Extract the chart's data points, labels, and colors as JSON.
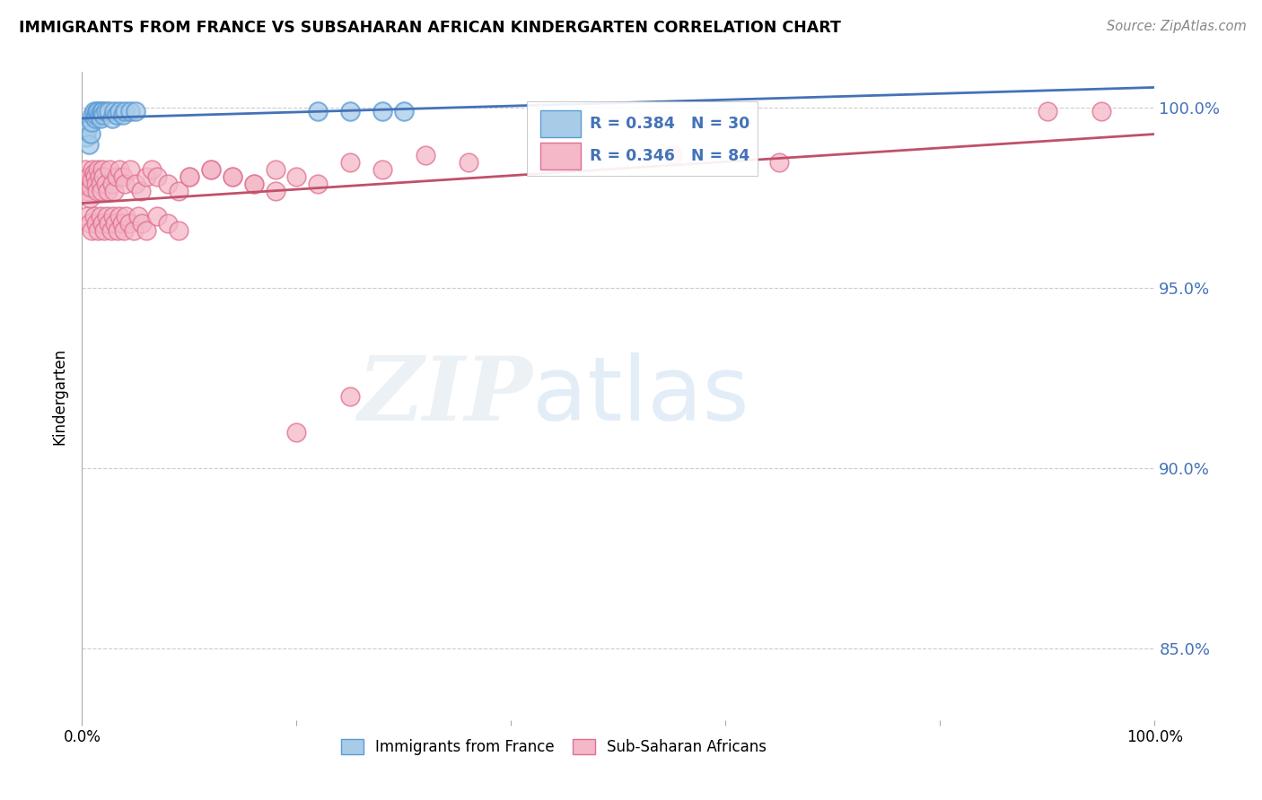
{
  "title": "IMMIGRANTS FROM FRANCE VS SUBSAHARAN AFRICAN KINDERGARTEN CORRELATION CHART",
  "source": "Source: ZipAtlas.com",
  "ylabel": "Kindergarten",
  "xlim": [
    0.0,
    1.0
  ],
  "ylim": [
    0.83,
    1.01
  ],
  "yticks": [
    0.85,
    0.9,
    0.95,
    1.0
  ],
  "ytick_labels": [
    "85.0%",
    "90.0%",
    "95.0%",
    "100.0%"
  ],
  "legend_label1": "Immigrants from France",
  "legend_label2": "Sub-Saharan Africans",
  "legend_R1": "R = 0.384",
  "legend_N1": "N = 30",
  "legend_R2": "R = 0.346",
  "legend_N2": "N = 84",
  "color_blue": "#a8cce8",
  "color_pink": "#f4b8c8",
  "color_blue_edge": "#5b9bd5",
  "color_pink_edge": "#e07090",
  "color_blue_line": "#4472b8",
  "color_pink_line": "#c0506a",
  "color_blue_text": "#4472b8",
  "watermark_zip": "ZIP",
  "watermark_atlas": "atlas",
  "france_x": [
    0.004,
    0.005,
    0.006,
    0.008,
    0.009,
    0.01,
    0.011,
    0.012,
    0.013,
    0.014,
    0.015,
    0.016,
    0.017,
    0.018,
    0.019,
    0.02,
    0.022,
    0.025,
    0.028,
    0.03,
    0.032,
    0.035,
    0.038,
    0.04,
    0.045,
    0.05,
    0.22,
    0.25,
    0.28,
    0.3
  ],
  "france_y": [
    0.992,
    0.994,
    0.99,
    0.993,
    0.996,
    0.998,
    0.999,
    0.997,
    0.998,
    0.999,
    0.999,
    0.998,
    0.997,
    0.999,
    0.999,
    0.998,
    0.999,
    0.999,
    0.997,
    0.999,
    0.998,
    0.999,
    0.998,
    0.999,
    0.999,
    0.999,
    0.999,
    0.999,
    0.999,
    0.999
  ],
  "africa_x": [
    0.003,
    0.004,
    0.005,
    0.006,
    0.007,
    0.008,
    0.009,
    0.01,
    0.011,
    0.012,
    0.013,
    0.014,
    0.015,
    0.016,
    0.017,
    0.018,
    0.019,
    0.02,
    0.022,
    0.024,
    0.026,
    0.028,
    0.03,
    0.032,
    0.035,
    0.038,
    0.04,
    0.045,
    0.05,
    0.055,
    0.06,
    0.065,
    0.07,
    0.08,
    0.09,
    0.1,
    0.12,
    0.14,
    0.16,
    0.18,
    0.005,
    0.007,
    0.009,
    0.011,
    0.013,
    0.015,
    0.017,
    0.019,
    0.021,
    0.023,
    0.025,
    0.027,
    0.029,
    0.031,
    0.033,
    0.035,
    0.037,
    0.039,
    0.041,
    0.044,
    0.048,
    0.052,
    0.056,
    0.06,
    0.07,
    0.08,
    0.09,
    0.1,
    0.12,
    0.14,
    0.16,
    0.18,
    0.2,
    0.22,
    0.25,
    0.28,
    0.32,
    0.36,
    0.55,
    0.65,
    0.2,
    0.25,
    0.9,
    0.95
  ],
  "africa_y": [
    0.983,
    0.979,
    0.977,
    0.981,
    0.975,
    0.978,
    0.98,
    0.983,
    0.982,
    0.981,
    0.979,
    0.977,
    0.983,
    0.981,
    0.979,
    0.977,
    0.983,
    0.981,
    0.979,
    0.977,
    0.983,
    0.979,
    0.977,
    0.981,
    0.983,
    0.981,
    0.979,
    0.983,
    0.979,
    0.977,
    0.981,
    0.983,
    0.981,
    0.979,
    0.977,
    0.981,
    0.983,
    0.981,
    0.979,
    0.977,
    0.97,
    0.968,
    0.966,
    0.97,
    0.968,
    0.966,
    0.97,
    0.968,
    0.966,
    0.97,
    0.968,
    0.966,
    0.97,
    0.968,
    0.966,
    0.97,
    0.968,
    0.966,
    0.97,
    0.968,
    0.966,
    0.97,
    0.968,
    0.966,
    0.97,
    0.968,
    0.966,
    0.981,
    0.983,
    0.981,
    0.979,
    0.983,
    0.981,
    0.979,
    0.985,
    0.983,
    0.987,
    0.985,
    0.987,
    0.985,
    0.91,
    0.92,
    0.999,
    0.999
  ]
}
